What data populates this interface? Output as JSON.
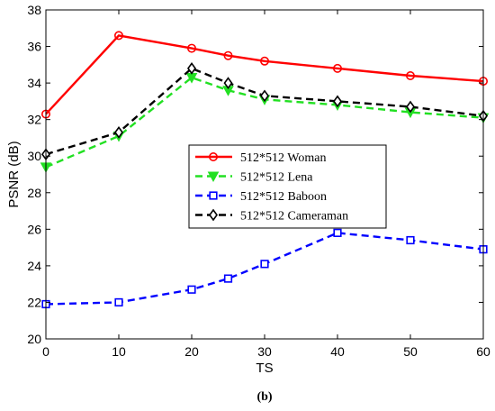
{
  "chart_data": {
    "type": "line",
    "xlabel": "TS",
    "ylabel": "PSNR (dB)",
    "xlim": [
      0,
      60
    ],
    "ylim": [
      20,
      38
    ],
    "xticks": [
      0,
      10,
      20,
      30,
      40,
      50,
      60
    ],
    "yticks": [
      20,
      22,
      24,
      26,
      28,
      30,
      32,
      34,
      36,
      38
    ],
    "grid": false,
    "legend_position": "center",
    "caption": "(b)",
    "x": [
      0,
      10,
      20,
      25,
      30,
      40,
      50,
      60
    ],
    "series": [
      {
        "name": "512*512 Woman",
        "color": "#ff0000",
        "dash": "solid",
        "marker": "circle",
        "values": [
          32.3,
          36.6,
          35.9,
          35.5,
          35.2,
          34.8,
          34.4,
          34.1
        ]
      },
      {
        "name": "512*512 Lena",
        "color": "#22e022",
        "dash": "dashed",
        "marker": "triangle-down",
        "values": [
          29.4,
          31.1,
          34.3,
          33.6,
          33.1,
          32.8,
          32.4,
          32.1
        ]
      },
      {
        "name": "512*512 Baboon",
        "color": "#0000ff",
        "dash": "dashed",
        "marker": "square",
        "values": [
          21.9,
          22.0,
          22.7,
          23.3,
          24.1,
          25.8,
          25.4,
          24.9
        ]
      },
      {
        "name": "512*512 Cameraman",
        "color": "#000000",
        "dash": "dashed",
        "marker": "diamond",
        "values": [
          30.1,
          31.3,
          34.8,
          34.0,
          33.3,
          33.0,
          32.7,
          32.2
        ]
      }
    ]
  }
}
